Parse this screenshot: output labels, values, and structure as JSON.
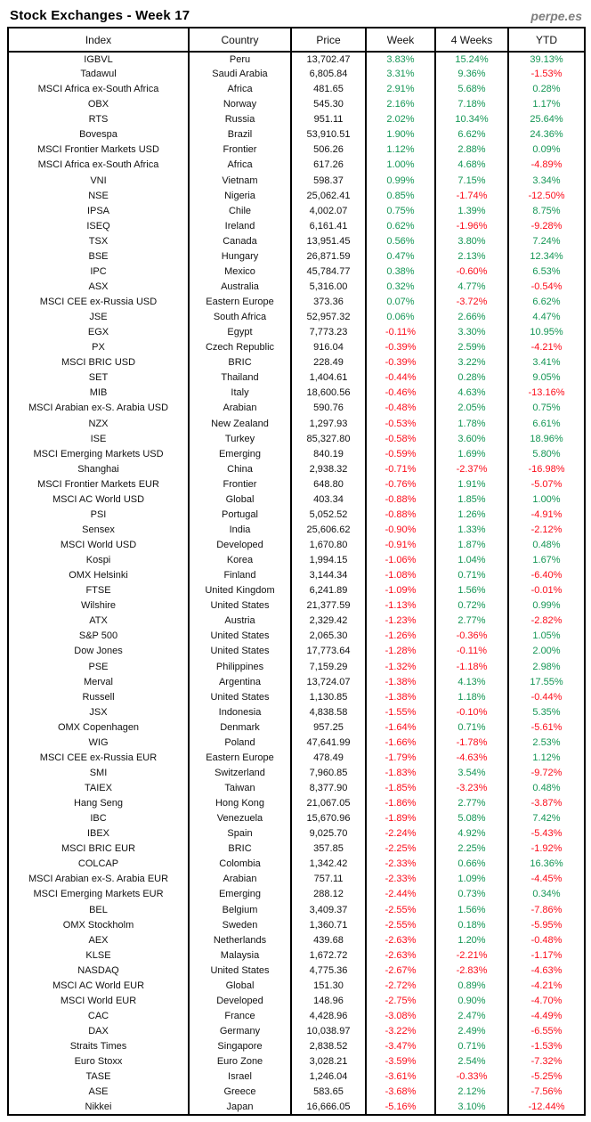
{
  "header": {
    "title": "Stock Exchanges - Week 17",
    "brand": "perpe.es"
  },
  "colors": {
    "positive": "#149655",
    "negative": "#fc0d1b",
    "text": "#111111",
    "brand_gray": "#7f7f7f"
  },
  "table": {
    "columns": [
      "Index",
      "Country",
      "Price",
      "Week",
      "4 Weeks",
      "YTD"
    ],
    "rows": [
      [
        "IGBVL",
        "Peru",
        "13,702.47",
        "3.83%",
        "15.24%",
        "39.13%"
      ],
      [
        "Tadawul",
        "Saudi Arabia",
        "6,805.84",
        "3.31%",
        "9.36%",
        "-1.53%"
      ],
      [
        "MSCI Africa ex-South Africa",
        "Africa",
        "481.65",
        "2.91%",
        "5.68%",
        "0.28%"
      ],
      [
        "OBX",
        "Norway",
        "545.30",
        "2.16%",
        "7.18%",
        "1.17%"
      ],
      [
        "RTS",
        "Russia",
        "951.11",
        "2.02%",
        "10.34%",
        "25.64%"
      ],
      [
        "Bovespa",
        "Brazil",
        "53,910.51",
        "1.90%",
        "6.62%",
        "24.36%"
      ],
      [
        "MSCI Frontier Markets USD",
        "Frontier",
        "506.26",
        "1.12%",
        "2.88%",
        "0.09%"
      ],
      [
        "MSCI Africa ex-South Africa",
        "Africa",
        "617.26",
        "1.00%",
        "4.68%",
        "-4.89%"
      ],
      [
        "VNI",
        "Vietnam",
        "598.37",
        "0.99%",
        "7.15%",
        "3.34%"
      ],
      [
        "NSE",
        "Nigeria",
        "25,062.41",
        "0.85%",
        "-1.74%",
        "-12.50%"
      ],
      [
        "IPSA",
        "Chile",
        "4,002.07",
        "0.75%",
        "1.39%",
        "8.75%"
      ],
      [
        "ISEQ",
        "Ireland",
        "6,161.41",
        "0.62%",
        "-1.96%",
        "-9.28%"
      ],
      [
        "TSX",
        "Canada",
        "13,951.45",
        "0.56%",
        "3.80%",
        "7.24%"
      ],
      [
        "BSE",
        "Hungary",
        "26,871.59",
        "0.47%",
        "2.13%",
        "12.34%"
      ],
      [
        "IPC",
        "Mexico",
        "45,784.77",
        "0.38%",
        "-0.60%",
        "6.53%"
      ],
      [
        "ASX",
        "Australia",
        "5,316.00",
        "0.32%",
        "4.77%",
        "-0.54%"
      ],
      [
        "MSCI CEE ex-Russia USD",
        "Eastern Europe",
        "373.36",
        "0.07%",
        "-3.72%",
        "6.62%"
      ],
      [
        "JSE",
        "South Africa",
        "52,957.32",
        "0.06%",
        "2.66%",
        "4.47%"
      ],
      [
        "EGX",
        "Egypt",
        "7,773.23",
        "-0.11%",
        "3.30%",
        "10.95%"
      ],
      [
        "PX",
        "Czech Republic",
        "916.04",
        "-0.39%",
        "2.59%",
        "-4.21%"
      ],
      [
        "MSCI BRIC USD",
        "BRIC",
        "228.49",
        "-0.39%",
        "3.22%",
        "3.41%"
      ],
      [
        "SET",
        "Thailand",
        "1,404.61",
        "-0.44%",
        "0.28%",
        "9.05%"
      ],
      [
        "MIB",
        "Italy",
        "18,600.56",
        "-0.46%",
        "4.63%",
        "-13.16%"
      ],
      [
        "MSCI Arabian ex-S. Arabia USD",
        "Arabian",
        "590.76",
        "-0.48%",
        "2.05%",
        "0.75%"
      ],
      [
        "NZX",
        "New Zealand",
        "1,297.93",
        "-0.53%",
        "1.78%",
        "6.61%"
      ],
      [
        "ISE",
        "Turkey",
        "85,327.80",
        "-0.58%",
        "3.60%",
        "18.96%"
      ],
      [
        "MSCI Emerging Markets USD",
        "Emerging",
        "840.19",
        "-0.59%",
        "1.69%",
        "5.80%"
      ],
      [
        "Shanghai",
        "China",
        "2,938.32",
        "-0.71%",
        "-2.37%",
        "-16.98%"
      ],
      [
        "MSCI Frontier Markets EUR",
        "Frontier",
        "648.80",
        "-0.76%",
        "1.91%",
        "-5.07%"
      ],
      [
        "MSCI AC World USD",
        "Global",
        "403.34",
        "-0.88%",
        "1.85%",
        "1.00%"
      ],
      [
        "PSI",
        "Portugal",
        "5,052.52",
        "-0.88%",
        "1.26%",
        "-4.91%"
      ],
      [
        "Sensex",
        "India",
        "25,606.62",
        "-0.90%",
        "1.33%",
        "-2.12%"
      ],
      [
        "MSCI World USD",
        "Developed",
        "1,670.80",
        "-0.91%",
        "1.87%",
        "0.48%"
      ],
      [
        "Kospi",
        "Korea",
        "1,994.15",
        "-1.06%",
        "1.04%",
        "1.67%"
      ],
      [
        "OMX Helsinki",
        "Finland",
        "3,144.34",
        "-1.08%",
        "0.71%",
        "-6.40%"
      ],
      [
        "FTSE",
        "United Kingdom",
        "6,241.89",
        "-1.09%",
        "1.56%",
        "-0.01%"
      ],
      [
        "Wilshire",
        "United States",
        "21,377.59",
        "-1.13%",
        "0.72%",
        "0.99%"
      ],
      [
        "ATX",
        "Austria",
        "2,329.42",
        "-1.23%",
        "2.77%",
        "-2.82%"
      ],
      [
        "S&P 500",
        "United States",
        "2,065.30",
        "-1.26%",
        "-0.36%",
        "1.05%"
      ],
      [
        "Dow Jones",
        "United States",
        "17,773.64",
        "-1.28%",
        "-0.11%",
        "2.00%"
      ],
      [
        "PSE",
        "Philippines",
        "7,159.29",
        "-1.32%",
        "-1.18%",
        "2.98%"
      ],
      [
        "Merval",
        "Argentina",
        "13,724.07",
        "-1.38%",
        "4.13%",
        "17.55%"
      ],
      [
        "Russell",
        "United States",
        "1,130.85",
        "-1.38%",
        "1.18%",
        "-0.44%"
      ],
      [
        "JSX",
        "Indonesia",
        "4,838.58",
        "-1.55%",
        "-0.10%",
        "5.35%"
      ],
      [
        "OMX Copenhagen",
        "Denmark",
        "957.25",
        "-1.64%",
        "0.71%",
        "-5.61%"
      ],
      [
        "WIG",
        "Poland",
        "47,641.99",
        "-1.66%",
        "-1.78%",
        "2.53%"
      ],
      [
        "MSCI CEE ex-Russia EUR",
        "Eastern Europe",
        "478.49",
        "-1.79%",
        "-4.63%",
        "1.12%"
      ],
      [
        "SMI",
        "Switzerland",
        "7,960.85",
        "-1.83%",
        "3.54%",
        "-9.72%"
      ],
      [
        "TAIEX",
        "Taiwan",
        "8,377.90",
        "-1.85%",
        "-3.23%",
        "0.48%"
      ],
      [
        "Hang Seng",
        "Hong Kong",
        "21,067.05",
        "-1.86%",
        "2.77%",
        "-3.87%"
      ],
      [
        "IBC",
        "Venezuela",
        "15,670.96",
        "-1.89%",
        "5.08%",
        "7.42%"
      ],
      [
        "IBEX",
        "Spain",
        "9,025.70",
        "-2.24%",
        "4.92%",
        "-5.43%"
      ],
      [
        "MSCI BRIC EUR",
        "BRIC",
        "357.85",
        "-2.25%",
        "2.25%",
        "-1.92%"
      ],
      [
        "COLCAP",
        "Colombia",
        "1,342.42",
        "-2.33%",
        "0.66%",
        "16.36%"
      ],
      [
        "MSCI Arabian ex-S. Arabia EUR",
        "Arabian",
        "757.11",
        "-2.33%",
        "1.09%",
        "-4.45%"
      ],
      [
        "MSCI Emerging Markets EUR",
        "Emerging",
        "288.12",
        "-2.44%",
        "0.73%",
        "0.34%"
      ],
      [
        "BEL",
        "Belgium",
        "3,409.37",
        "-2.55%",
        "1.56%",
        "-7.86%"
      ],
      [
        "OMX Stockholm",
        "Sweden",
        "1,360.71",
        "-2.55%",
        "0.18%",
        "-5.95%"
      ],
      [
        "AEX",
        "Netherlands",
        "439.68",
        "-2.63%",
        "1.20%",
        "-0.48%"
      ],
      [
        "KLSE",
        "Malaysia",
        "1,672.72",
        "-2.63%",
        "-2.21%",
        "-1.17%"
      ],
      [
        "NASDAQ",
        "United States",
        "4,775.36",
        "-2.67%",
        "-2.83%",
        "-4.63%"
      ],
      [
        "MSCI AC World EUR",
        "Global",
        "151.30",
        "-2.72%",
        "0.89%",
        "-4.21%"
      ],
      [
        "MSCI World EUR",
        "Developed",
        "148.96",
        "-2.75%",
        "0.90%",
        "-4.70%"
      ],
      [
        "CAC",
        "France",
        "4,428.96",
        "-3.08%",
        "2.47%",
        "-4.49%"
      ],
      [
        "DAX",
        "Germany",
        "10,038.97",
        "-3.22%",
        "2.49%",
        "-6.55%"
      ],
      [
        "Straits Times",
        "Singapore",
        "2,838.52",
        "-3.47%",
        "0.71%",
        "-1.53%"
      ],
      [
        "Euro Stoxx",
        "Euro Zone",
        "3,028.21",
        "-3.59%",
        "2.54%",
        "-7.32%"
      ],
      [
        "TASE",
        "Israel",
        "1,246.04",
        "-3.61%",
        "-0.33%",
        "-5.25%"
      ],
      [
        "ASE",
        "Greece",
        "583.65",
        "-3.68%",
        "2.12%",
        "-7.56%"
      ],
      [
        "Nikkei",
        "Japan",
        "16,666.05",
        "-5.16%",
        "3.10%",
        "-12.44%"
      ]
    ]
  }
}
